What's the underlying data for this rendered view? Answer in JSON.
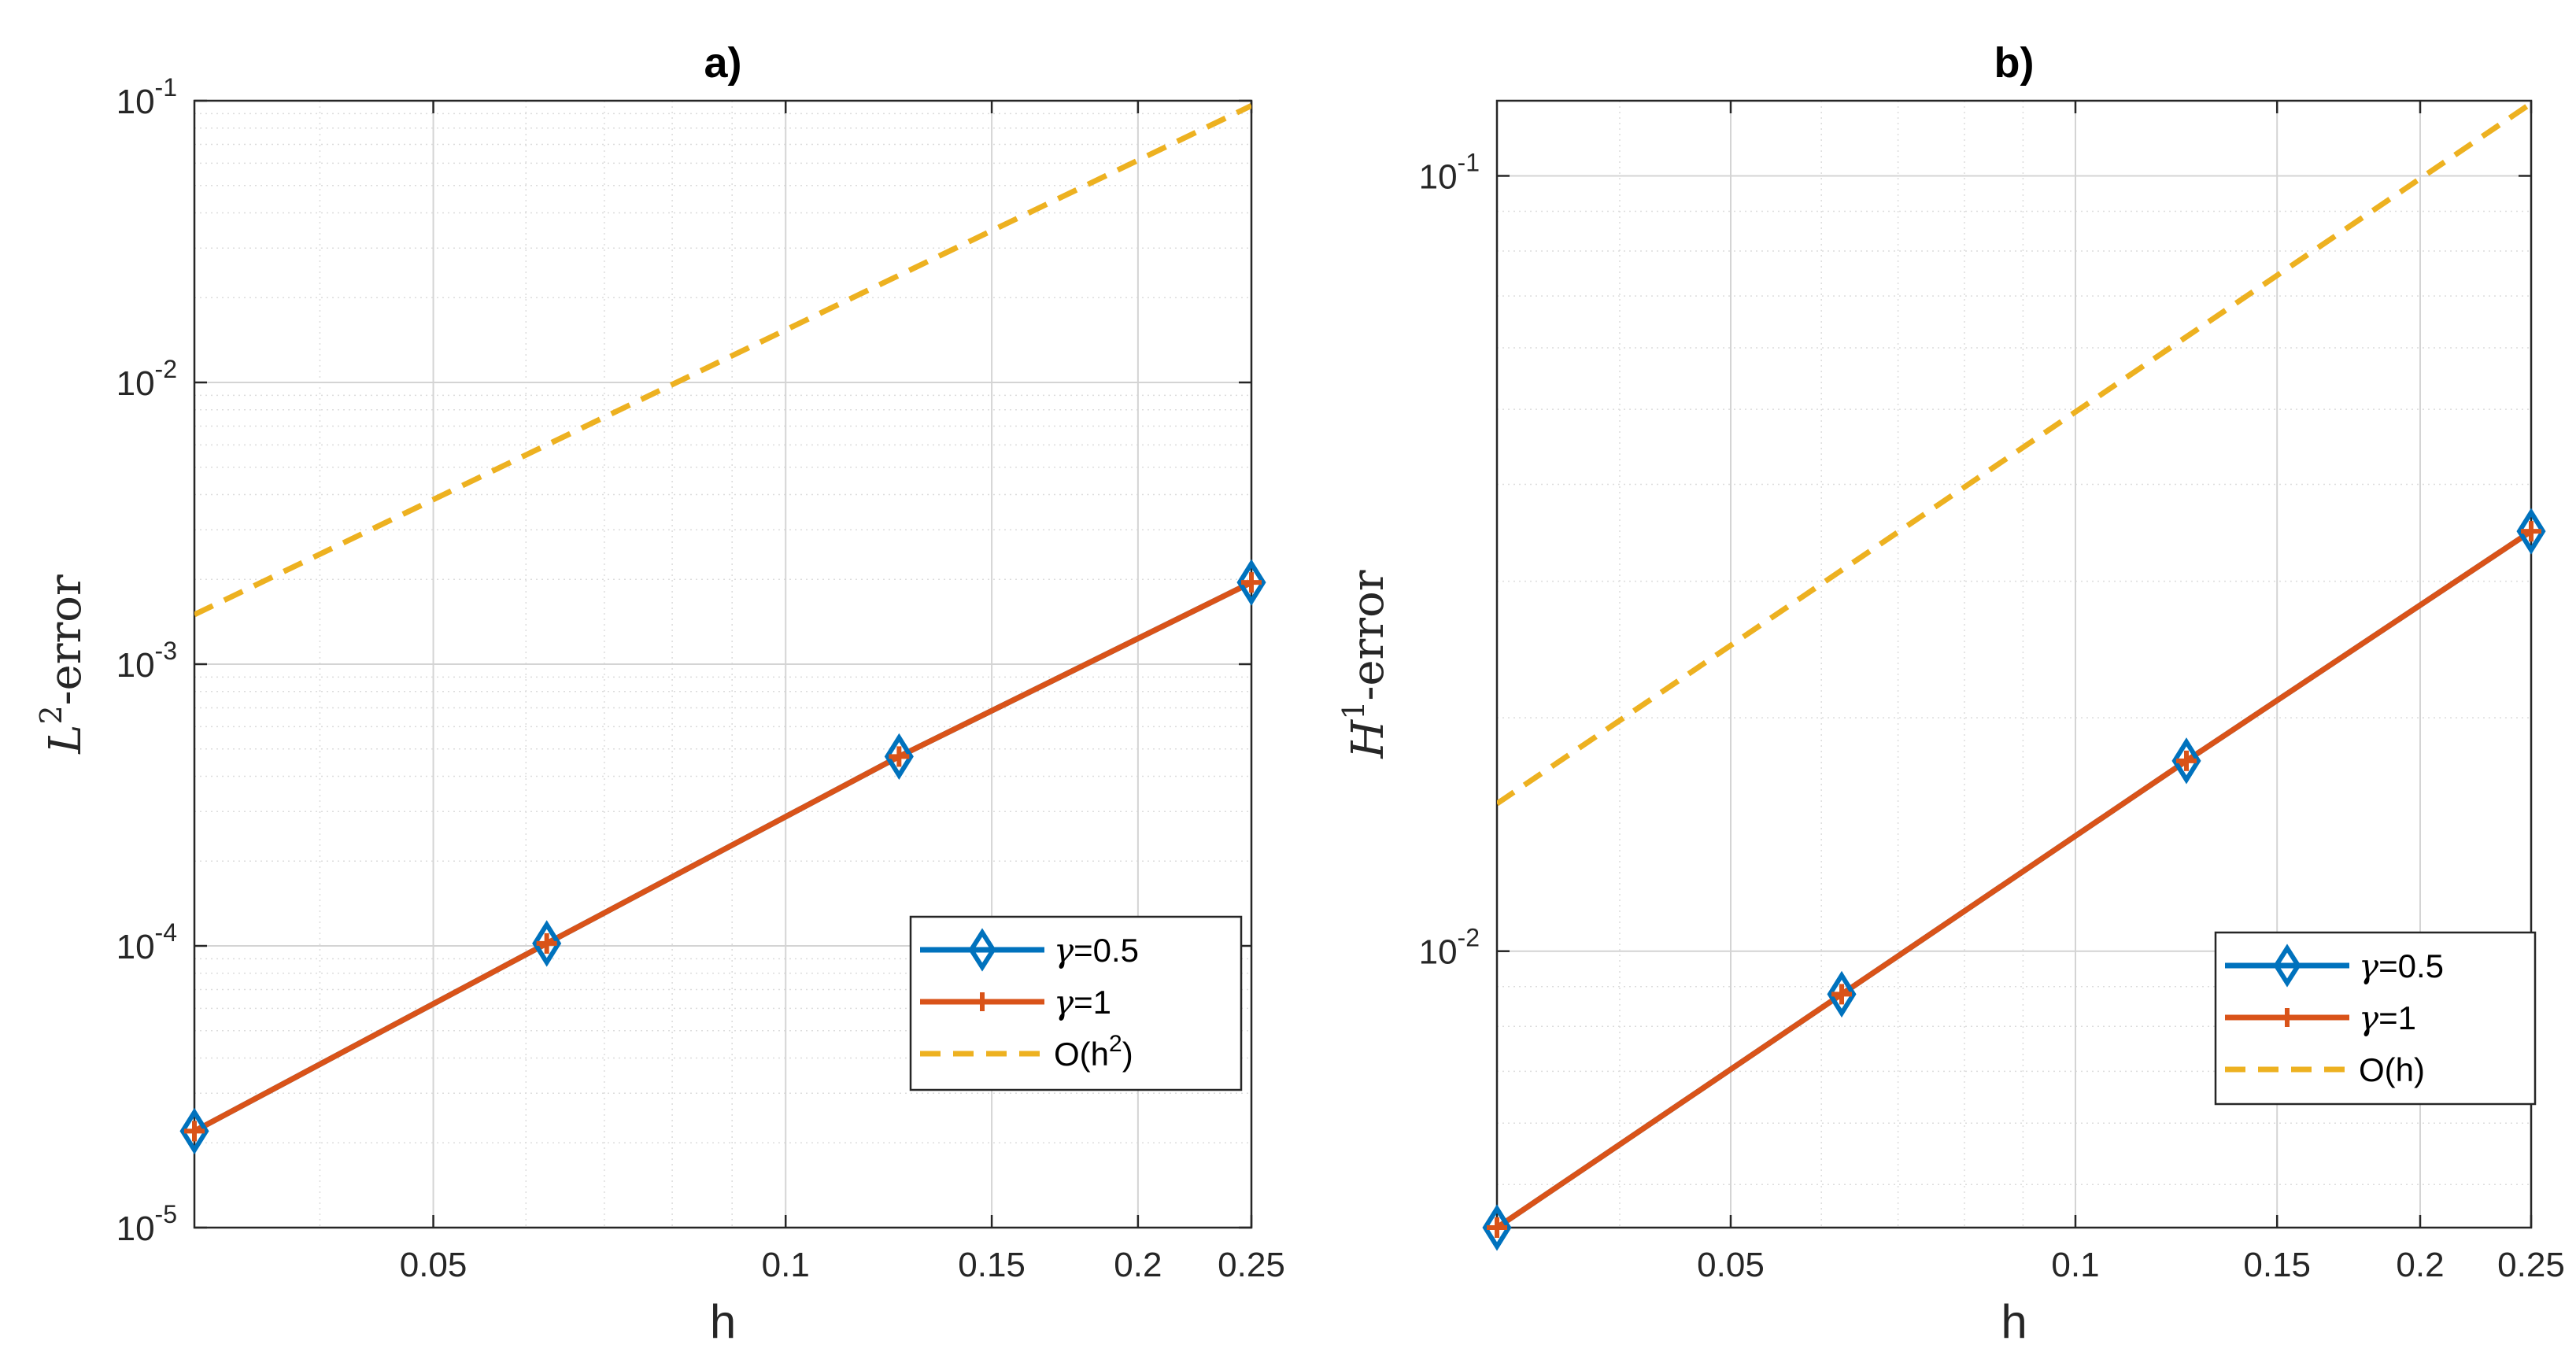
{
  "chart_data": [
    {
      "type": "line",
      "panel": "a",
      "title": "a)",
      "xlabel": "h",
      "ylabel": "L²-error",
      "ylabel_base": "L",
      "ylabel_sup": "2",
      "ylabel_rest": "-error",
      "xscale": "log",
      "yscale": "log",
      "xlim": [
        0.03125,
        0.25
      ],
      "ylim": [
        1e-05,
        0.1
      ],
      "xticks": [
        0.05,
        0.1,
        0.15,
        0.2,
        0.25
      ],
      "xtick_labels": [
        "0.05",
        "0.1",
        "0.15",
        "0.2",
        "0.25"
      ],
      "yticks": [
        1e-05,
        0.0001,
        0.001,
        0.01,
        0.1
      ],
      "ytick_labels": [
        {
          "base": "10",
          "exp": "-5"
        },
        {
          "base": "10",
          "exp": "-4"
        },
        {
          "base": "10",
          "exp": "-3"
        },
        {
          "base": "10",
          "exp": "-2"
        },
        {
          "base": "10",
          "exp": "-1"
        }
      ],
      "grid": true,
      "legend_position": "lower-right",
      "series": [
        {
          "name": "γ=0.5",
          "label_symbol": "γ",
          "label_value": "=0.5",
          "color": "#0072BD",
          "marker": "diamond",
          "dash": "solid",
          "x": [
            0.03125,
            0.0625,
            0.125,
            0.25
          ],
          "y": [
            2.2e-05,
            0.000102,
            0.00047,
            0.00195
          ]
        },
        {
          "name": "γ=1",
          "label_symbol": "γ",
          "label_value": "=1",
          "color": "#D95319",
          "marker": "plus",
          "dash": "solid",
          "x": [
            0.03125,
            0.0625,
            0.125,
            0.25
          ],
          "y": [
            2.2e-05,
            0.000102,
            0.00047,
            0.00195
          ]
        },
        {
          "name": "O(h2)",
          "label_text": "O(h",
          "label_sup": "2",
          "label_close": ")",
          "color": "#EDB120",
          "marker": "none",
          "dash": "dashed",
          "x": [
            0.03125,
            0.25
          ],
          "y": [
            0.0015,
            0.096
          ]
        }
      ]
    },
    {
      "type": "line",
      "panel": "b",
      "title": "b)",
      "xlabel": "h",
      "ylabel": "H¹-error",
      "ylabel_base": "H",
      "ylabel_sup": "1",
      "ylabel_rest": "-error",
      "xscale": "log",
      "yscale": "log",
      "xlim": [
        0.03125,
        0.25
      ],
      "ylim": [
        0.0044,
        0.125
      ],
      "xticks": [
        0.05,
        0.1,
        0.15,
        0.2,
        0.25
      ],
      "xtick_labels": [
        "0.05",
        "0.1",
        "0.15",
        "0.2",
        "0.25"
      ],
      "yticks": [
        0.01,
        0.1
      ],
      "ytick_labels": [
        {
          "base": "10",
          "exp": "-2"
        },
        {
          "base": "10",
          "exp": "-1"
        }
      ],
      "grid": true,
      "legend_position": "lower-right",
      "series": [
        {
          "name": "γ=0.5",
          "label_symbol": "γ",
          "label_value": "=0.5",
          "color": "#0072BD",
          "marker": "diamond",
          "dash": "solid",
          "x": [
            0.03125,
            0.0625,
            0.125,
            0.25
          ],
          "y": [
            0.0044,
            0.0088,
            0.0176,
            0.0348
          ]
        },
        {
          "name": "γ=1",
          "label_symbol": "γ",
          "label_value": "=1",
          "color": "#D95319",
          "marker": "plus",
          "dash": "solid",
          "x": [
            0.03125,
            0.0625,
            0.125,
            0.25
          ],
          "y": [
            0.0044,
            0.0088,
            0.0176,
            0.0348
          ]
        },
        {
          "name": "O(h)",
          "label_text": "O(h)",
          "label_sup": "",
          "label_close": "",
          "color": "#EDB120",
          "marker": "none",
          "dash": "dashed",
          "x": [
            0.03125,
            0.25
          ],
          "y": [
            0.0155,
            0.124
          ]
        }
      ]
    }
  ]
}
